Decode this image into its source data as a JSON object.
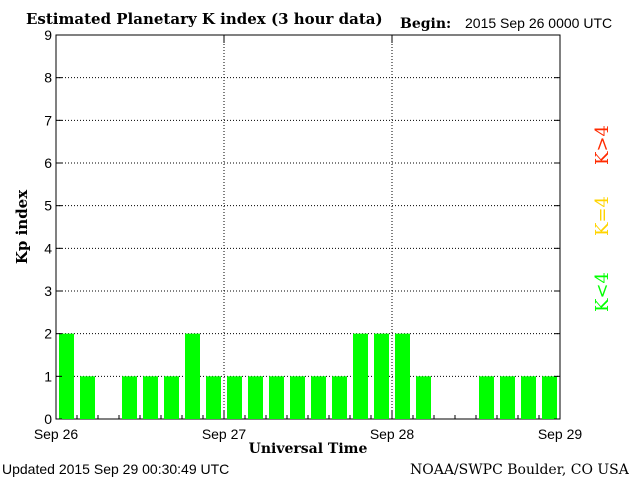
{
  "chart_data": {
    "type": "bar",
    "title": "Estimated Planetary K index (3 hour data)",
    "begin_label": "Begin:",
    "begin_value": "2015 Sep 26 0000 UTC",
    "xlabel": "Universal Time",
    "ylabel": "Kp index",
    "ylim": [
      0,
      9
    ],
    "xlim_days": [
      0,
      3
    ],
    "y_ticks": [
      "0",
      "1",
      "2",
      "3",
      "4",
      "5",
      "6",
      "7",
      "8",
      "9"
    ],
    "x_ticks": [
      {
        "day": 0,
        "label": "Sep 26"
      },
      {
        "day": 1,
        "label": "Sep 27"
      },
      {
        "day": 2,
        "label": "Sep 28"
      },
      {
        "day": 3,
        "label": "Sep 29"
      }
    ],
    "grid": true,
    "values": [
      2,
      1,
      0,
      1,
      1,
      1,
      2,
      1,
      1,
      1,
      1,
      1,
      1,
      1,
      2,
      2,
      2,
      1,
      0,
      0,
      1,
      1,
      1,
      1
    ],
    "bar_color": "#00ff00",
    "legend": [
      {
        "label": "K>4",
        "color": "#ff2a00"
      },
      {
        "label": "K=4",
        "color": "#ffd400"
      },
      {
        "label": "K<4",
        "color": "#00ff00"
      }
    ]
  },
  "footer": {
    "updated": "Updated 2015 Sep 29 00:30:49 UTC",
    "source": "NOAA/SWPC Boulder, CO USA"
  }
}
